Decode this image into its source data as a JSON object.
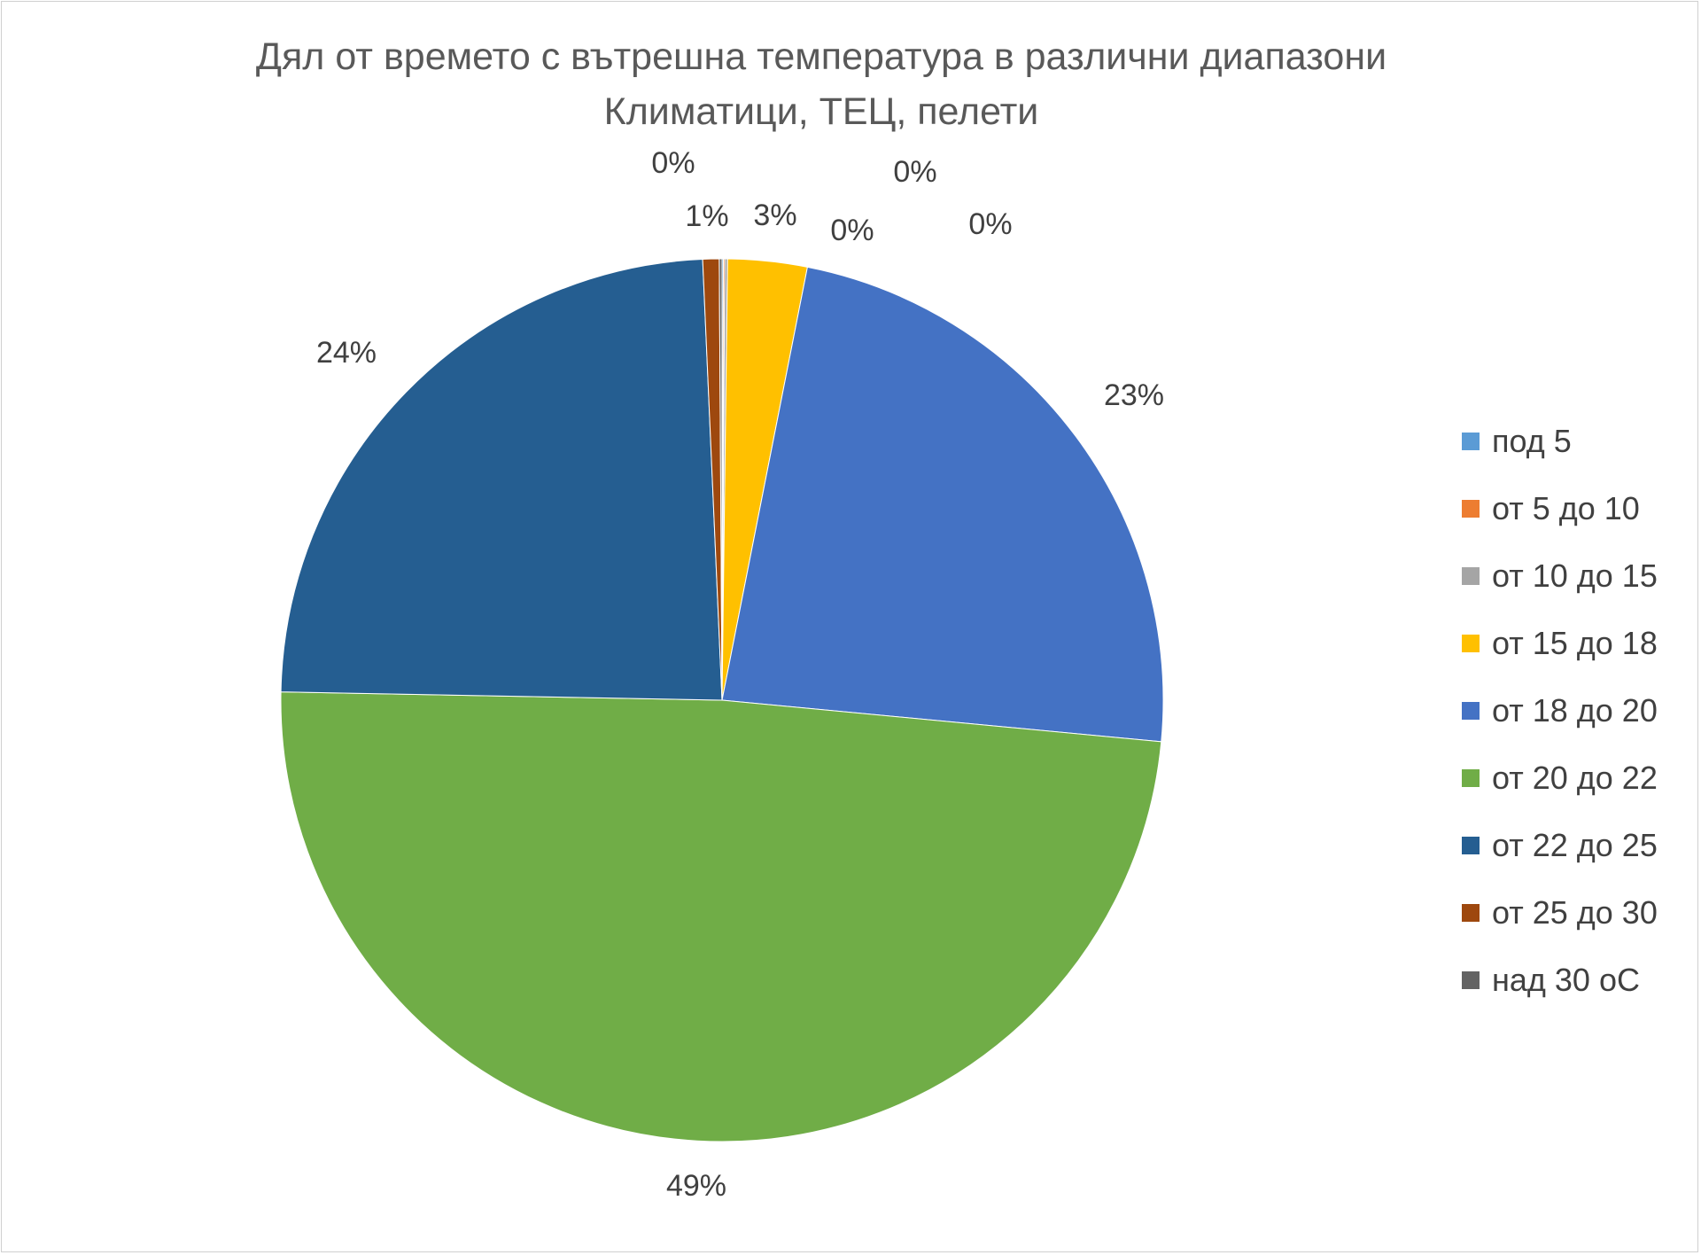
{
  "chart_data": {
    "type": "pie",
    "title": "Дял от времето с вътрешна температура в различни диапазони",
    "subtitle": "Климатици, ТЕЦ, пелети",
    "legend_position": "right",
    "slices": [
      {
        "label": "под 5",
        "value": 0.05,
        "data_label": "0%",
        "color": "#5B9BD5"
      },
      {
        "label": "от 5 до 10",
        "value": 0.05,
        "data_label": "0%",
        "color": "#ED7D31"
      },
      {
        "label": "от 10 до 15",
        "value": 0.1,
        "data_label": "0%",
        "color": "#A5A5A5"
      },
      {
        "label": "от 15 до 18",
        "value": 2.9,
        "data_label": "3%",
        "color": "#FFC000"
      },
      {
        "label": "от 18 до 20",
        "value": 23.4,
        "data_label": "23%",
        "color": "#4472C4"
      },
      {
        "label": "от 20 до 22",
        "value": 48.8,
        "data_label": "49%",
        "color": "#70AD47"
      },
      {
        "label": "от 22 до 25",
        "value": 24.0,
        "data_label": "24%",
        "color": "#255E91"
      },
      {
        "label": "от 25 до 30",
        "value": 0.6,
        "data_label": "1%",
        "color": "#9E480E"
      },
      {
        "label": "над 30 оС",
        "value": 0.1,
        "data_label": "0%",
        "color": "#636363"
      }
    ]
  }
}
